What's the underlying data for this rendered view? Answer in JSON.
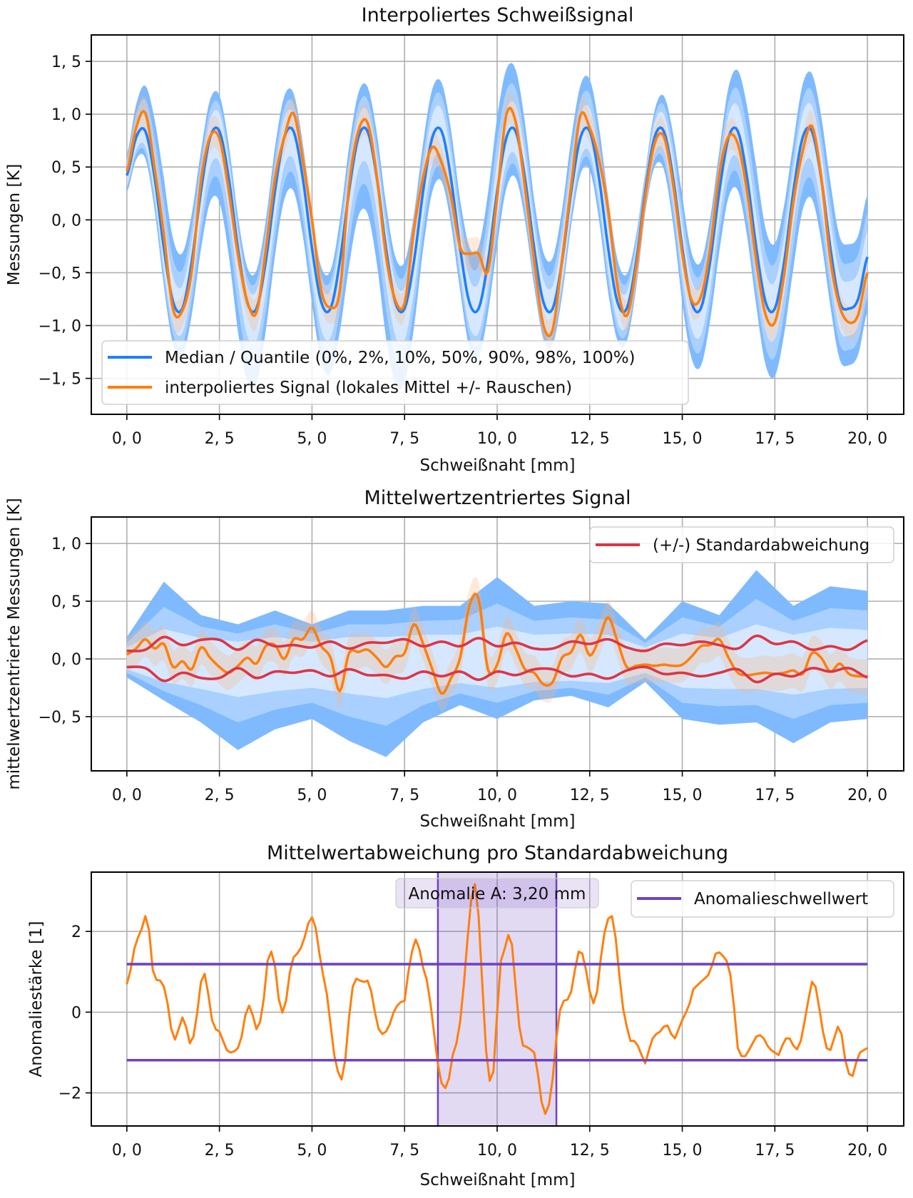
{
  "chart_data": [
    {
      "type": "line",
      "title": "Interpoliertes Schweißsignal",
      "xlabel": "Schweißnaht [mm]",
      "ylabel": "Messungen [K]",
      "xlim": [
        -0.96,
        20.98
      ],
      "ylim": [
        -1.84,
        1.75
      ],
      "grid": true,
      "xticks": {
        "values": [
          0,
          2.5,
          5,
          7.5,
          10,
          12.5,
          15,
          17.5,
          20
        ],
        "labels": [
          "0, 0",
          "2, 5",
          "5, 0",
          "7, 5",
          "10, 0",
          "12, 5",
          "15, 0",
          "17, 5",
          "20, 0"
        ]
      },
      "yticks": {
        "values": [
          1.5,
          1.0,
          0.5,
          0.0,
          -0.5,
          -1.0,
          -1.5
        ],
        "labels": [
          "1, 5",
          "1, 0",
          "0, 5",
          "0, 0",
          "−0, 5",
          "−1, 0",
          "−1, 5"
        ]
      },
      "legend": {
        "placement": "lower-left",
        "entries": [
          {
            "label": "Median / Quantile (0%, 2%, 10%, 50%, 90%, 98%, 100%)",
            "color": "#1f7fff"
          },
          {
            "label": "interpoliertes Signal (lokales Mittel +/- Rauschen)",
            "color": "#ff7f0e"
          }
        ]
      },
      "x_start": 0,
      "x_step": 0.25,
      "series": [
        {
          "name": "Median / Quantile (0%, 2%, 10%, 50%, 90%, 98%, 100%)",
          "color": "#1f7fff",
          "values": [
            0.42,
            0.78,
            0.84,
            0.4,
            -0.27,
            -0.78,
            -0.84,
            -0.4,
            0.27,
            0.78,
            0.84,
            0.4,
            -0.27,
            -0.78,
            -0.84,
            -0.4,
            0.27,
            0.78,
            0.84,
            0.4,
            -0.27,
            -0.78,
            -0.84,
            -0.4,
            0.27,
            0.78,
            0.84,
            0.4,
            -0.27,
            -0.78,
            -0.84,
            -0.4,
            0.27,
            0.78,
            0.84,
            0.4,
            -0.27,
            -0.78,
            -0.84,
            -0.4,
            0.27,
            0.78,
            0.84,
            0.4,
            -0.27,
            -0.78,
            -0.84,
            -0.4,
            0.27,
            0.78,
            0.84,
            0.4,
            -0.27,
            -0.78,
            -0.84,
            -0.4,
            0.27,
            0.78,
            0.84,
            0.4,
            -0.27,
            -0.78,
            -0.84,
            -0.4,
            0.27,
            0.78,
            0.84,
            0.4,
            -0.27,
            -0.78,
            -0.84,
            -0.4,
            0.27,
            0.78,
            0.84,
            0.4,
            -0.27,
            -0.78,
            -0.84,
            -0.75,
            -0.35
          ]
        },
        {
          "name": "interpoliertes Signal (lokales Mittel +/- Rauschen)",
          "color": "#ff7f0e",
          "values": [
            0.46,
            0.87,
            1.01,
            0.49,
            -0.14,
            -0.85,
            -0.86,
            -0.49,
            0.37,
            0.79,
            0.77,
            0.28,
            -0.33,
            -0.77,
            -0.88,
            -0.29,
            0.39,
            0.78,
            1.01,
            0.57,
            0.0,
            -0.67,
            -0.83,
            -0.68,
            0.32,
            0.84,
            0.92,
            0.41,
            -0.34,
            -0.76,
            -0.79,
            -0.1,
            0.4,
            0.69,
            0.54,
            0.23,
            -0.26,
            -0.32,
            -0.32,
            -0.49,
            0.22,
            1.0,
            0.93,
            0.31,
            -0.39,
            -1.0,
            -1.04,
            -0.39,
            0.33,
            0.99,
            0.87,
            0.57,
            0.09,
            -0.63,
            -0.91,
            -0.46,
            0.22,
            0.72,
            0.79,
            0.34,
            -0.32,
            -0.76,
            -0.73,
            -0.28,
            0.44,
            0.79,
            0.72,
            0.26,
            -0.4,
            -0.9,
            -0.97,
            -0.52,
            0.17,
            0.65,
            0.89,
            0.41,
            -0.38,
            -0.82,
            -0.97,
            -0.9,
            -0.5
          ]
        }
      ],
      "noise": 0.15
    },
    {
      "type": "line",
      "title": "Mittelwertzentriertes Signal",
      "xlabel": "Schweißnaht [mm]",
      "ylabel": "mittelwertzentrierte Messungen [K]",
      "xlim": [
        -0.96,
        20.98
      ],
      "ylim": [
        -0.97,
        1.23
      ],
      "grid": true,
      "xticks": {
        "values": [
          0,
          2.5,
          5,
          7.5,
          10,
          12.5,
          15,
          17.5,
          20
        ],
        "labels": [
          "0, 0",
          "2, 5",
          "5, 0",
          "7, 5",
          "10, 0",
          "12, 5",
          "15, 0",
          "17, 5",
          "20, 0"
        ]
      },
      "yticks": {
        "values": [
          1.0,
          0.5,
          0.0,
          -0.5
        ],
        "labels": [
          "1, 0",
          "0, 5",
          "0, 0",
          "−0, 5"
        ]
      },
      "legend": {
        "placement": "upper-right",
        "entries": [
          {
            "label": "(+/-) Standardabweichung",
            "color": "#dc3545"
          }
        ]
      },
      "signal": {
        "x_start": 0,
        "x_step": 0.25,
        "color": "#ff7f0e",
        "values": [
          0.04,
          0.09,
          0.17,
          0.09,
          0.13,
          -0.07,
          -0.02,
          -0.09,
          0.1,
          0.01,
          -0.07,
          -0.12,
          -0.06,
          0.01,
          -0.04,
          0.11,
          0.12,
          0.0,
          0.17,
          0.17,
          0.27,
          0.11,
          0.01,
          -0.28,
          0.05,
          0.06,
          0.08,
          0.01,
          -0.07,
          0.02,
          0.05,
          0.3,
          0.13,
          -0.09,
          -0.3,
          -0.17,
          0.01,
          0.46,
          0.52,
          -0.09,
          -0.05,
          0.22,
          0.09,
          -0.09,
          -0.12,
          -0.22,
          -0.2,
          0.01,
          0.06,
          0.21,
          0.03,
          0.17,
          0.36,
          0.15,
          -0.07,
          -0.06,
          -0.05,
          -0.06,
          -0.05,
          -0.06,
          -0.05,
          0.02,
          0.11,
          0.12,
          0.17,
          0.01,
          -0.12,
          -0.14,
          -0.13,
          -0.12,
          -0.13,
          -0.12,
          -0.1,
          -0.13,
          0.05,
          0.01,
          -0.11,
          -0.04,
          -0.13,
          -0.15,
          -0.15
        ]
      },
      "std": {
        "name": "(+/-) Standardabweichung",
        "x_start": 0,
        "x_step": 0.5,
        "color": "#dc3545",
        "values": [
          0.07,
          0.08,
          0.19,
          0.12,
          0.165,
          0.165,
          0.08,
          0.165,
          0.11,
          0.12,
          0.1,
          0.15,
          0.09,
          0.14,
          0.14,
          0.17,
          0.11,
          0.15,
          0.11,
          0.18,
          0.11,
          0.14,
          0.09,
          0.09,
          0.15,
          0.13,
          0.17,
          0.1,
          0.07,
          0.13,
          0.12,
          0.15,
          0.12,
          0.09,
          0.2,
          0.13,
          0.15,
          0.08,
          0.11,
          0.08,
          0.16
        ]
      },
      "quantiles": {
        "x_start": 0,
        "x_step": 1,
        "colors": {
          "q0_q100": "#7fbaff",
          "q2_q98": "#a9d0ff",
          "q10_q90": "#d5e8ff"
        },
        "q100": [
          0.19,
          0.67,
          0.38,
          0.3,
          0.42,
          0.3,
          0.42,
          0.42,
          0.46,
          0.46,
          0.71,
          0.46,
          0.5,
          0.48,
          0.17,
          0.5,
          0.38,
          0.77,
          0.46,
          0.63,
          0.59
        ],
        "q98": [
          0.14,
          0.45,
          0.28,
          0.22,
          0.3,
          0.22,
          0.3,
          0.3,
          0.33,
          0.34,
          0.48,
          0.33,
          0.36,
          0.34,
          0.14,
          0.36,
          0.28,
          0.52,
          0.33,
          0.44,
          0.42
        ],
        "q90": [
          0.1,
          0.26,
          0.18,
          0.15,
          0.19,
          0.15,
          0.19,
          0.19,
          0.21,
          0.21,
          0.28,
          0.21,
          0.22,
          0.21,
          0.1,
          0.22,
          0.18,
          0.3,
          0.21,
          0.27,
          0.25
        ],
        "q10": [
          -0.09,
          -0.2,
          -0.26,
          -0.33,
          -0.28,
          -0.25,
          -0.3,
          -0.34,
          -0.26,
          -0.21,
          -0.25,
          -0.2,
          -0.19,
          -0.21,
          -0.12,
          -0.25,
          -0.26,
          -0.26,
          -0.31,
          -0.26,
          -0.25
        ],
        "q2": [
          -0.12,
          -0.28,
          -0.4,
          -0.55,
          -0.44,
          -0.38,
          -0.5,
          -0.58,
          -0.4,
          -0.3,
          -0.38,
          -0.28,
          -0.25,
          -0.31,
          -0.16,
          -0.38,
          -0.41,
          -0.4,
          -0.52,
          -0.4,
          -0.38
        ],
        "q0": [
          -0.16,
          -0.36,
          -0.55,
          -0.79,
          -0.61,
          -0.52,
          -0.71,
          -0.85,
          -0.55,
          -0.4,
          -0.52,
          -0.36,
          -0.32,
          -0.42,
          -0.2,
          -0.52,
          -0.57,
          -0.55,
          -0.73,
          -0.55,
          -0.52
        ]
      },
      "noise": 0.15
    },
    {
      "type": "line",
      "title": "Mittelwertabweichung pro Standardabweichung",
      "xlabel": "Schweißnaht [mm]",
      "ylabel": "Anomaliestärke [1]",
      "xlim": [
        -0.96,
        20.98
      ],
      "ylim": [
        -2.82,
        3.47
      ],
      "grid": true,
      "xticks": {
        "values": [
          0,
          2.5,
          5,
          7.5,
          10,
          12.5,
          15,
          17.5,
          20
        ],
        "labels": [
          "0, 0",
          "2, 5",
          "5, 0",
          "7, 5",
          "10, 0",
          "12, 5",
          "15, 0",
          "17, 5",
          "20, 0"
        ]
      },
      "yticks": {
        "values": [
          2,
          0,
          -2
        ],
        "labels": [
          "2",
          "0",
          "−2"
        ]
      },
      "legend": {
        "placement": "upper-right",
        "entries": [
          {
            "label": "Anomalieschwellwert",
            "color": "#6f42c1"
          }
        ]
      },
      "threshold": 1.19,
      "threshold_color": "#6f42c1",
      "anomalies": [
        {
          "label": "Anomalie A: 3,20 mm",
          "start": 8.4,
          "end": 11.6,
          "color": "#6f42c1"
        }
      ],
      "signal": {
        "x_start": 0,
        "x_step": 0.1,
        "color": "#ff7f0e",
        "values": [
          0.69,
          1.04,
          1.56,
          1.85,
          2.06,
          2.38,
          2.03,
          1.04,
          0.8,
          0.78,
          0.63,
          0.22,
          -0.42,
          -0.68,
          -0.42,
          -0.13,
          -0.36,
          -0.77,
          -0.6,
          -0.01,
          0.75,
          0.95,
          0.45,
          -0.19,
          -0.42,
          -0.48,
          -0.71,
          -0.94,
          -1.0,
          -0.97,
          -0.89,
          -0.6,
          -0.07,
          0.16,
          -0.07,
          -0.42,
          -0.24,
          0.34,
          1.27,
          1.5,
          1.15,
          0.34,
          -0.01,
          0.28,
          0.98,
          1.36,
          1.45,
          1.59,
          1.85,
          2.2,
          2.35,
          2.09,
          1.45,
          0.92,
          0.45,
          -0.3,
          -1.06,
          -1.47,
          -1.67,
          -1.18,
          -0.13,
          0.63,
          0.83,
          0.78,
          0.75,
          0.78,
          0.51,
          -0.01,
          -0.42,
          -0.54,
          -0.48,
          -0.3,
          -0.01,
          0.16,
          0.25,
          0.28,
          0.98,
          1.5,
          1.8,
          1.56,
          1.1,
          0.8,
          0.22,
          -0.54,
          -1.29,
          -1.76,
          -1.88,
          -1.64,
          -1.06,
          -0.77,
          -0.24,
          0.69,
          1.8,
          2.79,
          3.17,
          2.38,
          0.69,
          -0.94,
          -1.7,
          -1.47,
          -0.01,
          1.27,
          1.56,
          1.91,
          1.68,
          0.63,
          -0.36,
          -0.83,
          -0.86,
          -0.92,
          -1.0,
          -1.53,
          -2.23,
          -2.52,
          -2.29,
          -1.64,
          -0.65,
          0.05,
          0.28,
          0.31,
          0.51,
          1.04,
          1.5,
          1.45,
          1.04,
          0.51,
          0.22,
          0.51,
          1.33,
          1.97,
          2.32,
          2.38,
          1.85,
          0.92,
          0.1,
          -0.36,
          -0.71,
          -0.71,
          -0.83,
          -1.06,
          -1.27,
          -0.94,
          -0.65,
          -0.54,
          -0.48,
          -0.36,
          -0.33,
          -0.54,
          -0.65,
          -0.42,
          -0.19,
          -0.01,
          0.22,
          0.57,
          0.66,
          0.75,
          0.83,
          0.92,
          1.15,
          1.45,
          1.48,
          1.39,
          1.27,
          0.92,
          0.1,
          -0.89,
          -1.09,
          -1.09,
          -0.94,
          -0.77,
          -0.6,
          -0.57,
          -0.65,
          -0.83,
          -0.94,
          -1.0,
          -1.06,
          -0.83,
          -0.65,
          -0.65,
          -0.83,
          -0.92,
          -0.71,
          -0.24,
          0.28,
          0.75,
          0.63,
          0.1,
          -0.48,
          -0.89,
          -0.94,
          -0.65,
          -0.36,
          -0.54,
          -1.18,
          -1.53,
          -1.58,
          -1.24,
          -1.0,
          -0.94,
          -0.89
        ]
      }
    }
  ]
}
